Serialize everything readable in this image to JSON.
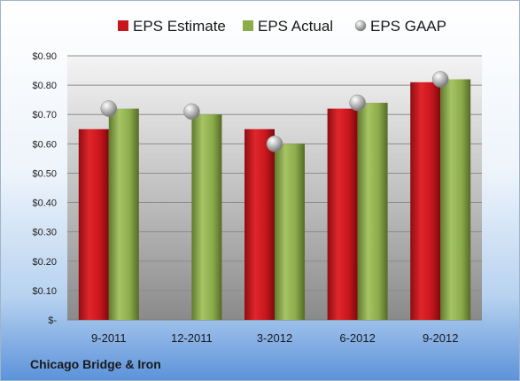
{
  "company": "Chicago Bridge & Iron",
  "chart_data": {
    "type": "bar",
    "title": "",
    "xlabel": "",
    "ylabel": "",
    "categories": [
      "9-2011",
      "12-2011",
      "3-2012",
      "6-2012",
      "9-2012"
    ],
    "series": [
      {
        "name": "EPS Estimate",
        "type": "bar",
        "color": "#c8161d",
        "values": [
          0.65,
          null,
          0.65,
          0.72,
          0.81
        ]
      },
      {
        "name": "EPS Actual",
        "type": "bar",
        "color": "#8cab4a",
        "values": [
          0.72,
          0.7,
          0.6,
          0.74,
          0.82
        ]
      },
      {
        "name": "EPS GAAP",
        "type": "scatter",
        "color": "#b0b0b0",
        "values": [
          0.72,
          0.71,
          0.6,
          0.74,
          0.82
        ]
      }
    ],
    "ylim": [
      0,
      0.9
    ],
    "yticks": [
      0,
      0.1,
      0.2,
      0.3,
      0.4,
      0.5,
      0.6,
      0.7,
      0.8,
      0.9
    ],
    "ytick_labels": [
      "$-",
      "$0.10",
      "$0.20",
      "$0.30",
      "$0.40",
      "$0.50",
      "$0.60",
      "$0.70",
      "$0.80",
      "$0.90"
    ],
    "grid": true,
    "legend_position": "top"
  }
}
